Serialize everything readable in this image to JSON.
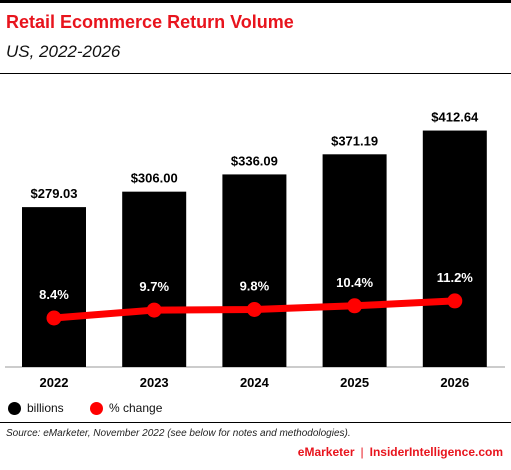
{
  "header": {
    "title": "Retail Ecommerce Return Volume",
    "subtitle": "US, 2022-2026"
  },
  "legend": {
    "bars_label": "billions",
    "line_label": "% change"
  },
  "source": "Source: eMarketer, November 2022 (see below for notes and methodologies).",
  "footer": {
    "brand1": "eMarketer",
    "separator": "|",
    "brand2": "InsiderIntelligence.com"
  },
  "colors": {
    "bar": "#000000",
    "line": "#ff0000",
    "title": "#e8141d"
  },
  "chart_data": {
    "type": "bar",
    "categories": [
      "2022",
      "2023",
      "2024",
      "2025",
      "2026"
    ],
    "series": [
      {
        "name": "billions",
        "type": "bar",
        "values": [
          279.03,
          306.0,
          336.09,
          371.19,
          412.64
        ],
        "labels": [
          "$279.03",
          "$306.00",
          "$336.09",
          "$371.19",
          "$412.64"
        ]
      },
      {
        "name": "% change",
        "type": "line",
        "values": [
          8.4,
          9.7,
          9.8,
          10.4,
          11.2
        ],
        "labels": [
          "8.4%",
          "9.7%",
          "9.8%",
          "10.4%",
          "11.2%"
        ]
      }
    ],
    "title": "Retail Ecommerce Return Volume",
    "subtitle": "US, 2022-2026",
    "grid": false,
    "legend_position": "bottom-left"
  }
}
